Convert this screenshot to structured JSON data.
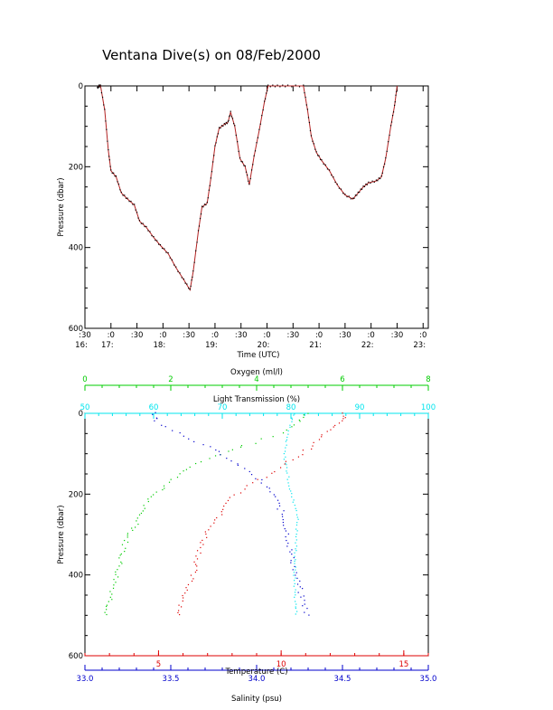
{
  "title": "Ventana Dive(s) on 08/Feb/2000",
  "colors": {
    "background": "#ffffff",
    "axes": "#000000",
    "dive_trace": "#b22222",
    "dive_marks": "#000000",
    "oxygen": "#00cc00",
    "light_transmission": "#00e5ee",
    "temperature": "#dd0000",
    "salinity": "#0000cc"
  },
  "chart_data": [
    {
      "type": "line",
      "ylabel": "Pressure (dbar)",
      "xlabel": "Time (UTC)",
      "xlim": [
        16.5,
        23.1
      ],
      "ylim": [
        600,
        0
      ],
      "y_ticks": [
        "0",
        "200",
        "400",
        "600"
      ],
      "x_ticks": [
        {
          "top": ":30",
          "bottom": "16:",
          "t": 16.5
        },
        {
          "top": ":0",
          "bottom": "17:",
          "t": 17.0
        },
        {
          "top": ":30",
          "bottom": "",
          "t": 17.5
        },
        {
          "top": ":0",
          "bottom": "18:",
          "t": 18.0
        },
        {
          "top": ":30",
          "bottom": "",
          "t": 18.5
        },
        {
          "top": ":0",
          "bottom": "19:",
          "t": 19.0
        },
        {
          "top": ":30",
          "bottom": "",
          "t": 19.5
        },
        {
          "top": ":0",
          "bottom": "20:",
          "t": 20.0
        },
        {
          "top": ":30",
          "bottom": "",
          "t": 20.5
        },
        {
          "top": ":0",
          "bottom": "21:",
          "t": 21.0
        },
        {
          "top": ":30",
          "bottom": "",
          "t": 21.5
        },
        {
          "top": ":0",
          "bottom": "22:",
          "t": 22.0
        },
        {
          "top": ":30",
          "bottom": "",
          "t": 22.5
        },
        {
          "top": ":0",
          "bottom": "23:",
          "t": 23.0
        }
      ],
      "series": [
        {
          "points": [
            [
              16.74,
              5
            ],
            [
              16.77,
              0
            ],
            [
              16.8,
              0
            ],
            [
              16.88,
              60
            ],
            [
              16.95,
              160
            ],
            [
              17.0,
              210
            ],
            [
              17.1,
              225
            ],
            [
              17.2,
              265
            ],
            [
              17.32,
              280
            ],
            [
              17.45,
              295
            ],
            [
              17.55,
              335
            ],
            [
              17.68,
              350
            ],
            [
              17.82,
              375
            ],
            [
              17.95,
              395
            ],
            [
              18.1,
              415
            ],
            [
              18.25,
              450
            ],
            [
              18.4,
              480
            ],
            [
              18.52,
              505
            ],
            [
              18.58,
              460
            ],
            [
              18.68,
              360
            ],
            [
              18.75,
              300
            ],
            [
              18.85,
              290
            ],
            [
              18.92,
              230
            ],
            [
              19.0,
              150
            ],
            [
              19.08,
              105
            ],
            [
              19.18,
              95
            ],
            [
              19.25,
              90
            ],
            [
              19.3,
              65
            ],
            [
              19.38,
              100
            ],
            [
              19.48,
              180
            ],
            [
              19.58,
              200
            ],
            [
              19.66,
              245
            ],
            [
              19.75,
              175
            ],
            [
              19.85,
              110
            ],
            [
              19.95,
              40
            ],
            [
              20.02,
              0
            ],
            [
              20.2,
              0
            ],
            [
              20.4,
              0
            ],
            [
              20.7,
              0
            ],
            [
              20.78,
              60
            ],
            [
              20.85,
              125
            ],
            [
              20.95,
              165
            ],
            [
              21.05,
              185
            ],
            [
              21.2,
              210
            ],
            [
              21.35,
              245
            ],
            [
              21.5,
              270
            ],
            [
              21.65,
              280
            ],
            [
              21.75,
              265
            ],
            [
              21.85,
              250
            ],
            [
              21.95,
              240
            ],
            [
              22.1,
              235
            ],
            [
              22.2,
              225
            ],
            [
              22.28,
              180
            ],
            [
              22.38,
              100
            ],
            [
              22.45,
              50
            ],
            [
              22.5,
              0
            ]
          ]
        }
      ]
    },
    {
      "type": "scatter",
      "ylabel": "Pressure (dbar)",
      "ylim": [
        600,
        0
      ],
      "y_ticks": [
        "0",
        "200",
        "400",
        "600"
      ],
      "axes": [
        {
          "key": "oxygen",
          "label": "Oxygen (ml/l)",
          "position": "top",
          "range": [
            0,
            8
          ],
          "ticks": [
            "0",
            "2",
            "4",
            "6",
            "8"
          ]
        },
        {
          "key": "light_transmission",
          "label": "Light Transmission (%)",
          "position": "top",
          "range": [
            50,
            100
          ],
          "ticks": [
            "50",
            "60",
            "70",
            "80",
            "90",
            "100"
          ]
        },
        {
          "key": "temperature",
          "label": "Temperature (C)",
          "position": "bottom",
          "range": [
            2,
            16
          ],
          "ticks": [
            "5",
            "10",
            "15"
          ]
        },
        {
          "key": "salinity",
          "label": "Salinity (psu)",
          "position": "bottom",
          "range": [
            33.0,
            35.0
          ],
          "ticks": [
            "33.0",
            "33.5",
            "34.0",
            "34.5",
            "35.0"
          ]
        }
      ],
      "series": [
        {
          "key": "oxygen",
          "points": [
            [
              5.2,
              0
            ],
            [
              5.0,
              20
            ],
            [
              4.6,
              50
            ],
            [
              3.7,
              80
            ],
            [
              3.2,
              100
            ],
            [
              2.6,
              125
            ],
            [
              2.2,
              150
            ],
            [
              1.9,
              180
            ],
            [
              1.6,
              200
            ],
            [
              1.3,
              240
            ],
            [
              1.2,
              280
            ],
            [
              1.0,
              300
            ],
            [
              0.85,
              360
            ],
            [
              0.7,
              420
            ],
            [
              0.55,
              480
            ],
            [
              0.5,
              505
            ]
          ]
        },
        {
          "key": "light_transmission",
          "points": [
            [
              80.5,
              0
            ],
            [
              80.0,
              20
            ],
            [
              79.5,
              50
            ],
            [
              79.0,
              100
            ],
            [
              79.5,
              150
            ],
            [
              80.0,
              200
            ],
            [
              81.0,
              250
            ],
            [
              80.8,
              300
            ],
            [
              80.5,
              400
            ],
            [
              80.6,
              450
            ],
            [
              80.8,
              505
            ]
          ]
        },
        {
          "key": "temperature",
          "points": [
            [
              12.6,
              0
            ],
            [
              12.5,
              20
            ],
            [
              12.0,
              40
            ],
            [
              11.3,
              80
            ],
            [
              10.3,
              120
            ],
            [
              9.6,
              150
            ],
            [
              8.7,
              180
            ],
            [
              8.0,
              210
            ],
            [
              7.5,
              250
            ],
            [
              7.1,
              280
            ],
            [
              6.8,
              320
            ],
            [
              6.5,
              380
            ],
            [
              6.2,
              430
            ],
            [
              5.9,
              480
            ],
            [
              5.8,
              505
            ]
          ]
        },
        {
          "key": "salinity",
          "points": [
            [
              33.4,
              0
            ],
            [
              33.42,
              20
            ],
            [
              33.55,
              50
            ],
            [
              33.75,
              90
            ],
            [
              33.9,
              130
            ],
            [
              34.0,
              160
            ],
            [
              34.1,
              200
            ],
            [
              34.15,
              250
            ],
            [
              34.18,
              300
            ],
            [
              34.2,
              350
            ],
            [
              34.23,
              400
            ],
            [
              34.26,
              450
            ],
            [
              34.3,
              505
            ]
          ]
        }
      ]
    }
  ]
}
